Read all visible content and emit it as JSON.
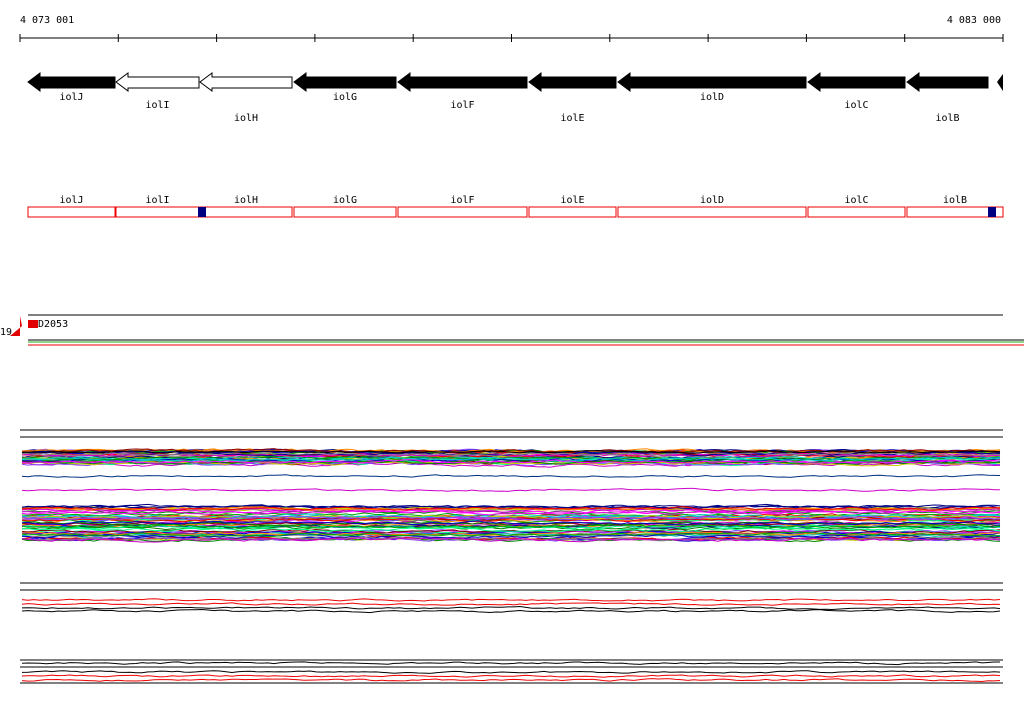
{
  "ruler": {
    "start": "4 073 001",
    "end": "4 083 000"
  },
  "genes": [
    {
      "label": "iolJ"
    },
    {
      "label": "iolI"
    },
    {
      "label": "iolH"
    },
    {
      "label": "iolG"
    },
    {
      "label": "iolF"
    },
    {
      "label": "iolE"
    },
    {
      "label": "iolD"
    },
    {
      "label": "iolC"
    },
    {
      "label": "iolB"
    }
  ],
  "features": [
    {
      "label": "iolJ"
    },
    {
      "label": "iolI"
    },
    {
      "label": "iolH"
    },
    {
      "label": "iolG"
    },
    {
      "label": "iolF"
    },
    {
      "label": "iolE"
    },
    {
      "label": "iolD"
    },
    {
      "label": "iolC"
    },
    {
      "label": "iolB"
    }
  ],
  "track": {
    "number": "19",
    "label": "D2053"
  }
}
